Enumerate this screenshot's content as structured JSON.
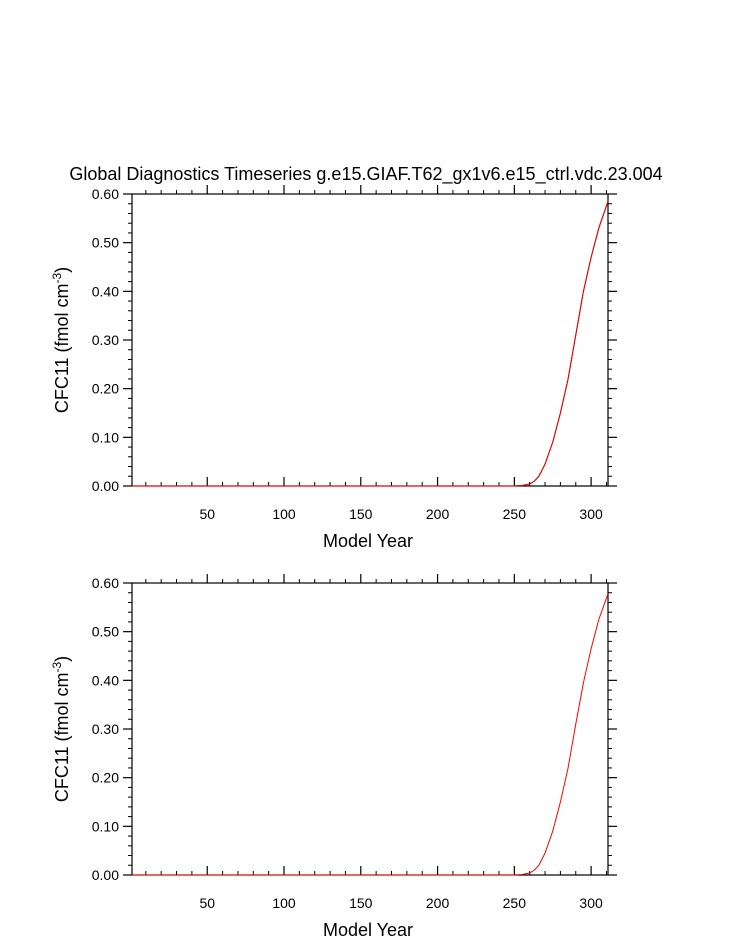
{
  "page_title": "Global Diagnostics Timeseries g.e15.GIAF.T62_gx1v6.e15_ctrl.vdc.23.004",
  "colors": {
    "background": "#ffffff",
    "axes": "#000000",
    "top_series_line": "#000000",
    "top_series_overlay": "#ff0000",
    "bottom_series_line": "#ff0000"
  },
  "chart_data": [
    {
      "type": "line",
      "title": "Global Diagnostics Timeseries g.e15.GIAF.T62_gx1v6.e15_ctrl.vdc.23.004",
      "xlabel": "Model Year",
      "ylabel": "CFC11 (fmol cm",
      "ylabel_sup": "-3",
      "ylabel_end": ")",
      "xlim": [
        1,
        311
      ],
      "ylim": [
        0,
        0.6
      ],
      "xticks": [
        50,
        100,
        150,
        200,
        250,
        300
      ],
      "xtick_labels": [
        "50",
        "100",
        "150",
        "200",
        "250",
        "300"
      ],
      "yticks": [
        0,
        0.1,
        0.2,
        0.3,
        0.4,
        0.5,
        0.6
      ],
      "ytick_labels": [
        "0.00",
        "0.10",
        "0.20",
        "0.30",
        "0.40",
        "0.50",
        "0.60"
      ],
      "grid": false,
      "series": [
        {
          "color": "#000000",
          "x": [
            1,
            50,
            100,
            150,
            200,
            250,
            255,
            260,
            263,
            266,
            270,
            275,
            280,
            285,
            290,
            295,
            300,
            305,
            311
          ],
          "y": [
            0,
            0,
            0,
            0,
            0,
            0,
            0.001,
            0.004,
            0.01,
            0.02,
            0.045,
            0.09,
            0.15,
            0.22,
            0.31,
            0.4,
            0.47,
            0.53,
            0.585
          ]
        },
        {
          "color": "#ff0000",
          "x": [
            1,
            50,
            100,
            150,
            200,
            250,
            255,
            260,
            263,
            266,
            270,
            275,
            280,
            285,
            290,
            295,
            300,
            305,
            311
          ],
          "y": [
            0,
            0,
            0,
            0,
            0,
            0,
            0.001,
            0.004,
            0.01,
            0.02,
            0.045,
            0.09,
            0.15,
            0.22,
            0.31,
            0.4,
            0.47,
            0.53,
            0.585
          ]
        }
      ]
    },
    {
      "type": "line",
      "title": "",
      "xlabel": "Model Year",
      "ylabel": "CFC11 (fmol cm",
      "ylabel_sup": "-3",
      "ylabel_end": ")",
      "xlim": [
        1,
        311
      ],
      "ylim": [
        0,
        0.6
      ],
      "xticks": [
        50,
        100,
        150,
        200,
        250,
        300
      ],
      "xtick_labels": [
        "50",
        "100",
        "150",
        "200",
        "250",
        "300"
      ],
      "yticks": [
        0,
        0.1,
        0.2,
        0.3,
        0.4,
        0.5,
        0.6
      ],
      "ytick_labels": [
        "0.00",
        "0.10",
        "0.20",
        "0.30",
        "0.40",
        "0.50",
        "0.60"
      ],
      "grid": false,
      "series": [
        {
          "color": "#ff0000",
          "x": [
            1,
            50,
            100,
            150,
            200,
            250,
            255,
            260,
            263,
            266,
            270,
            275,
            280,
            285,
            290,
            295,
            300,
            305,
            311
          ],
          "y": [
            0,
            0,
            0,
            0,
            0,
            0,
            0.001,
            0.004,
            0.01,
            0.02,
            0.045,
            0.09,
            0.15,
            0.22,
            0.31,
            0.395,
            0.465,
            0.525,
            0.578
          ]
        }
      ]
    }
  ]
}
